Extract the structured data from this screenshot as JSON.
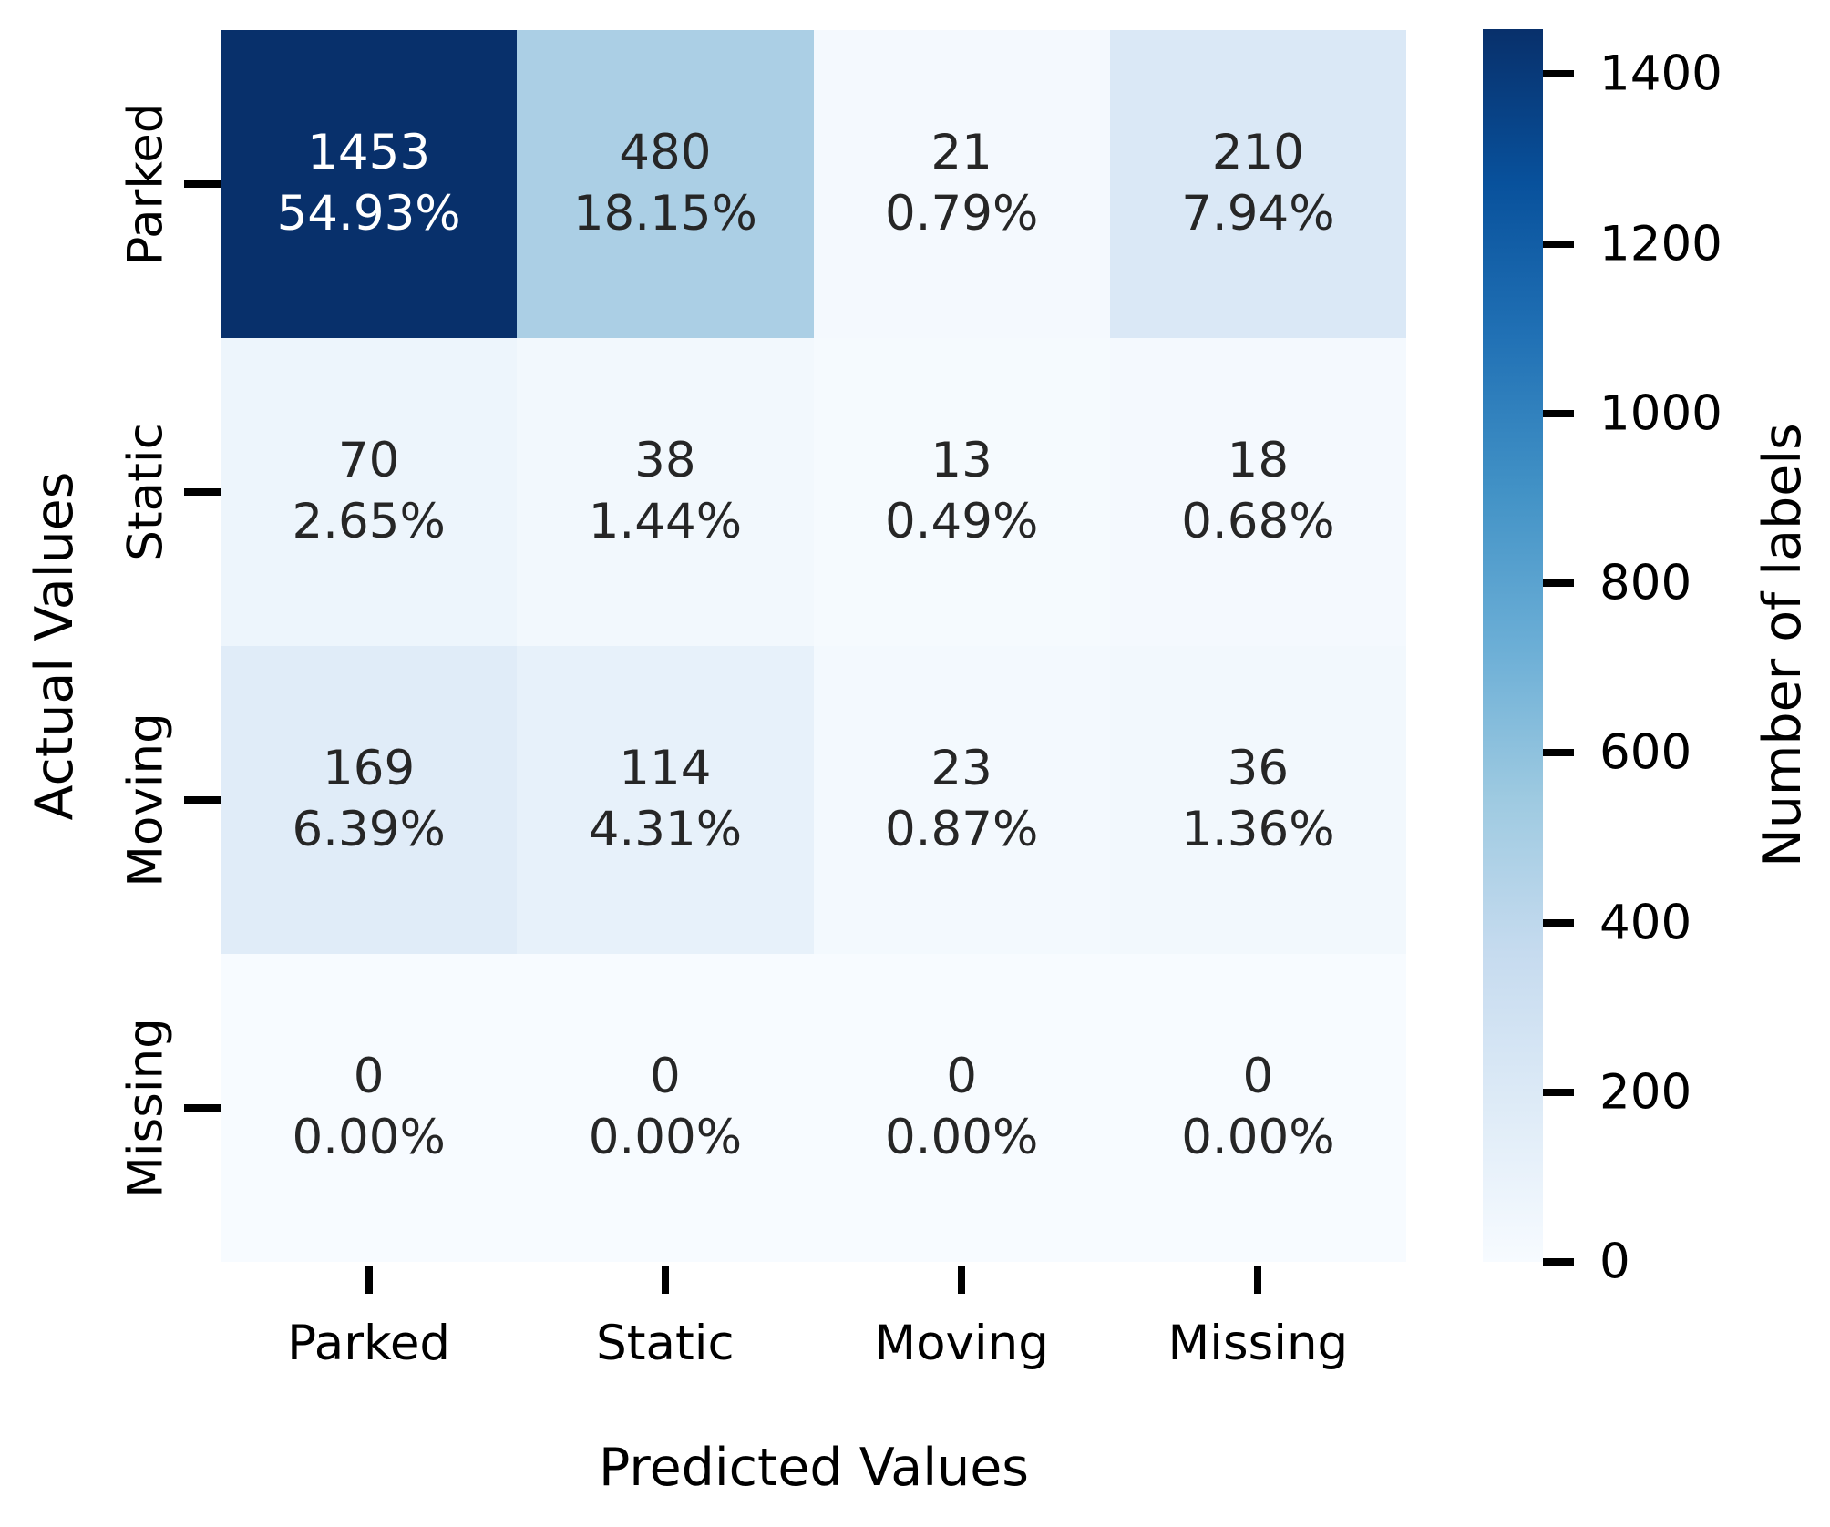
{
  "figure": {
    "xlabel": "Predicted Values",
    "ylabel": "Actual Values",
    "colorbar_label": "Number of labels",
    "background_color": "#ffffff",
    "annotation_dark_text": "#262626",
    "annotation_light_text": "#ffffff"
  },
  "chart_data": {
    "type": "heatmap",
    "title": "",
    "xlabel": "Predicted Values",
    "ylabel": "Actual Values",
    "x_categories": [
      "Parked",
      "Static",
      "Moving",
      "Missing"
    ],
    "y_categories": [
      "Parked",
      "Static",
      "Moving",
      "Missing"
    ],
    "counts": [
      [
        1453,
        480,
        21,
        210
      ],
      [
        70,
        38,
        13,
        18
      ],
      [
        169,
        114,
        23,
        36
      ],
      [
        0,
        0,
        0,
        0
      ]
    ],
    "percent_labels": [
      [
        "54.93%",
        "18.15%",
        "0.79%",
        "7.94%"
      ],
      [
        "2.65%",
        "1.44%",
        "0.49%",
        "0.68%"
      ],
      [
        "6.39%",
        "4.31%",
        "0.87%",
        "1.36%"
      ],
      [
        "0.00%",
        "0.00%",
        "0.00%",
        "0.00%"
      ]
    ],
    "cell_colors": [
      [
        "#08306b",
        "#abcfe5",
        "#f4f9fe",
        "#dae8f6"
      ],
      [
        "#edf5fc",
        "#f2f8fd",
        "#f5fafe",
        "#f4f9fe"
      ],
      [
        "#e0ecf8",
        "#e7f1fa",
        "#f3f9fe",
        "#f2f8fd"
      ],
      [
        "#f7fbff",
        "#f7fbff",
        "#f7fbff",
        "#f7fbff"
      ]
    ],
    "cell_text_colors": [
      [
        "#ffffff",
        "#262626",
        "#262626",
        "#262626"
      ],
      [
        "#262626",
        "#262626",
        "#262626",
        "#262626"
      ],
      [
        "#262626",
        "#262626",
        "#262626",
        "#262626"
      ],
      [
        "#262626",
        "#262626",
        "#262626",
        "#262626"
      ]
    ],
    "grid": false,
    "legend": "colorbar-right",
    "colorbar": {
      "label": "Number of labels",
      "vmin": 0,
      "vmax": 1453,
      "ticks": [
        1400,
        1200,
        1000,
        800,
        600,
        400,
        200,
        0
      ],
      "colormap": "Blues",
      "colormap_stops": [
        "#08306b",
        "#08519c",
        "#2171b5",
        "#4292c6",
        "#6baed6",
        "#9ecae1",
        "#c6dbef",
        "#deebf7",
        "#f7fbff"
      ]
    }
  }
}
